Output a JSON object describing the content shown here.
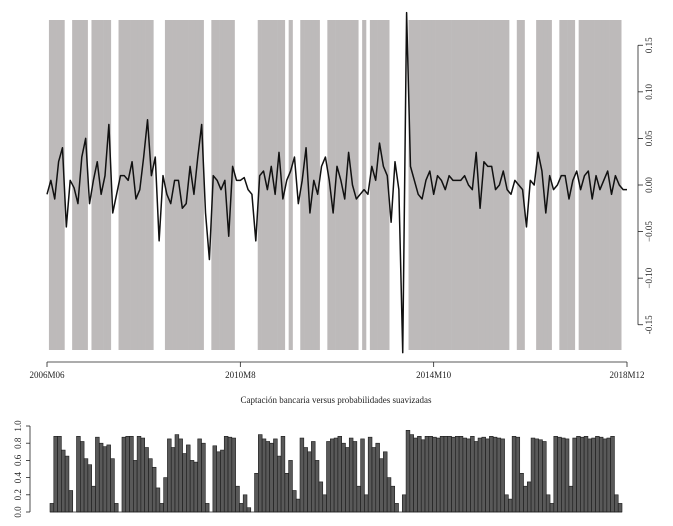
{
  "chart_data": [
    {
      "type": "line",
      "categories": [
        "2006M06",
        null,
        null,
        null,
        null,
        null,
        null,
        null,
        null,
        null,
        null,
        null,
        null,
        null,
        null,
        null,
        null,
        null,
        null,
        null,
        null,
        null,
        null,
        null,
        null,
        null,
        null,
        null,
        null,
        null,
        null,
        null,
        null,
        null,
        null,
        null,
        null,
        null,
        null,
        null,
        null,
        null,
        null,
        null,
        null,
        null,
        null,
        null,
        null,
        null,
        "2010M8",
        null,
        null,
        null,
        null,
        null,
        null,
        null,
        null,
        null,
        null,
        null,
        null,
        null,
        null,
        null,
        null,
        null,
        null,
        null,
        null,
        null,
        null,
        null,
        null,
        null,
        null,
        null,
        null,
        null,
        null,
        null,
        null,
        null,
        null,
        null,
        null,
        null,
        null,
        null,
        null,
        null,
        null,
        null,
        null,
        null,
        null,
        null,
        null,
        null,
        "2014M10",
        null,
        null,
        null,
        null,
        null,
        null,
        null,
        null,
        null,
        null,
        null,
        null,
        null,
        null,
        null,
        null,
        null,
        null,
        null,
        null,
        null,
        null,
        null,
        null,
        null,
        null,
        null,
        null,
        null,
        null,
        null,
        null,
        null,
        null,
        null,
        null,
        null,
        null,
        null,
        null,
        null,
        null,
        null,
        null,
        null,
        null,
        null,
        null,
        null,
        "2018M12"
      ],
      "values": [
        -0.01,
        0.005,
        -0.015,
        0.025,
        0.04,
        -0.045,
        0.005,
        -0.003,
        -0.02,
        0.03,
        0.05,
        -0.02,
        0.005,
        0.025,
        -0.01,
        0.01,
        0.065,
        -0.03,
        -0.01,
        0.01,
        0.01,
        0.005,
        0.025,
        -0.015,
        -0.005,
        0.03,
        0.07,
        0.01,
        0.03,
        -0.06,
        0.01,
        -0.01,
        -0.02,
        0.005,
        0.005,
        -0.025,
        -0.02,
        0.02,
        -0.01,
        0.03,
        0.065,
        -0.03,
        -0.08,
        0.01,
        0.005,
        -0.005,
        0.005,
        -0.055,
        0.02,
        0.005,
        0.005,
        0.008,
        -0.005,
        -0.01,
        -0.06,
        0.01,
        0.015,
        -0.005,
        0.02,
        -0.01,
        0.035,
        -0.015,
        0.005,
        0.015,
        0.03,
        -0.02,
        0.005,
        0.04,
        -0.03,
        0.005,
        -0.01,
        0.02,
        0.03,
        0.005,
        -0.03,
        0.02,
        0.005,
        -0.015,
        0.035,
        0.0,
        -0.015,
        -0.01,
        -0.005,
        -0.01,
        0.02,
        0.005,
        0.045,
        0.02,
        0.01,
        -0.04,
        0.025,
        -0.005,
        -0.18,
        0.185,
        0.02,
        0.005,
        -0.01,
        -0.015,
        0.005,
        0.015,
        -0.01,
        0.01,
        0.005,
        -0.005,
        0.01,
        0.005,
        0.005,
        0.005,
        0.01,
        0.0,
        -0.005,
        0.035,
        -0.025,
        0.025,
        0.02,
        0.02,
        -0.005,
        0.0,
        0.015,
        -0.005,
        -0.01,
        0.005,
        0.0,
        -0.005,
        -0.045,
        0.005,
        0.0,
        0.035,
        0.015,
        -0.03,
        0.01,
        -0.005,
        0.0,
        0.01,
        0.01,
        -0.015,
        0.005,
        0.015,
        -0.005,
        0.01,
        0.015,
        -0.015,
        0.01,
        -0.005,
        0.005,
        0.015,
        -0.01,
        0.01,
        0.0,
        -0.005,
        -0.005
      ],
      "color": "#111111",
      "shade_color": "#bdbaba",
      "ylim": [
        -0.19,
        0.19
      ],
      "yticks": [
        -0.15,
        {
          "value": -0.1,
          "label": "−0.10"
        },
        {
          "value": -0.05,
          "label": "−0.05"
        },
        {
          "value": 0,
          "label": "0.00"
        },
        0.05,
        {
          "value": 0.1,
          "label": "0.10"
        },
        0.15
      ]
    },
    {
      "type": "bar",
      "title": "Captación bancaria versus probabilidades suavizadas",
      "values": [
        0.1,
        0.88,
        0.88,
        0.72,
        0.65,
        0.25,
        0.0,
        0.88,
        0.82,
        0.62,
        0.55,
        0.3,
        0.87,
        0.8,
        0.76,
        0.78,
        0.62,
        0.1,
        0.0,
        0.87,
        0.88,
        0.88,
        0.6,
        0.88,
        0.86,
        0.75,
        0.62,
        0.52,
        0.28,
        0.1,
        0.4,
        0.85,
        0.75,
        0.9,
        0.85,
        0.68,
        0.78,
        0.6,
        0.58,
        0.85,
        0.8,
        0.1,
        0.0,
        0.77,
        0.7,
        0.72,
        0.88,
        0.87,
        0.86,
        0.3,
        0.1,
        0.2,
        0.05,
        0.0,
        0.45,
        0.9,
        0.85,
        0.82,
        0.8,
        0.85,
        0.65,
        0.88,
        0.45,
        0.6,
        0.25,
        0.15,
        0.86,
        0.75,
        0.7,
        0.82,
        0.6,
        0.35,
        0.2,
        0.82,
        0.85,
        0.86,
        0.88,
        0.8,
        0.75,
        0.86,
        0.82,
        0.3,
        0.85,
        0.2,
        0.87,
        0.75,
        0.8,
        0.62,
        0.7,
        0.4,
        0.3,
        0.1,
        0.0,
        0.2,
        0.95,
        0.9,
        0.86,
        0.88,
        0.84,
        0.88,
        0.88,
        0.87,
        0.86,
        0.88,
        0.88,
        0.88,
        0.87,
        0.88,
        0.88,
        0.86,
        0.85,
        0.88,
        0.82,
        0.86,
        0.87,
        0.85,
        0.88,
        0.87,
        0.86,
        0.85,
        0.2,
        0.15,
        0.88,
        0.87,
        0.45,
        0.3,
        0.35,
        0.86,
        0.85,
        0.84,
        0.82,
        0.2,
        0.1,
        0.88,
        0.87,
        0.86,
        0.85,
        0.3,
        0.86,
        0.88,
        0.87,
        0.88,
        0.85,
        0.86,
        0.88,
        0.87,
        0.85,
        0.86,
        0.88,
        0.2,
        0.1
      ],
      "color": "#595959",
      "ylim": [
        0,
        1
      ],
      "yticks": [
        {
          "value": 0,
          "label": "0.0"
        },
        0.2,
        0.4,
        0.6,
        0.8,
        {
          "value": 1,
          "label": "1.0"
        }
      ]
    }
  ]
}
